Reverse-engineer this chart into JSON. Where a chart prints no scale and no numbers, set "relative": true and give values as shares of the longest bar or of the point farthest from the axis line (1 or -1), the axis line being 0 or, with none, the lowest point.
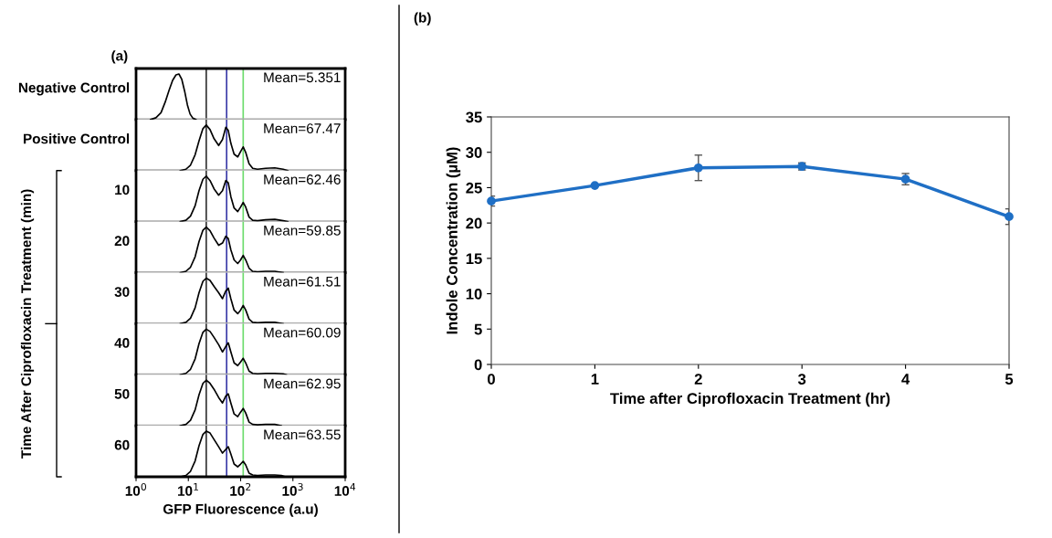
{
  "chart_data": [
    {
      "type": "line",
      "title": "(a)",
      "ylabel": "Negative Control",
      "relative": true,
      "log": "x",
      "xlim": [
        1,
        10000
      ],
      "tick_labels": false,
      "grid": false,
      "annotations": [
        "Mean=5.351"
      ],
      "ref_lines": [
        {
          "axis": "x",
          "value": 22,
          "color": "#333333"
        },
        {
          "axis": "x",
          "value": 54,
          "color": "#3a3aa8"
        },
        {
          "axis": "x",
          "value": 112,
          "color": "#6cdc6c"
        }
      ],
      "series": [
        {
          "color": "#000000",
          "x": [
            1.9,
            2.4,
            3.0,
            3.6,
            4.3,
            5.0,
            5.8,
            6.6,
            7.5,
            8.5,
            9.6,
            10.8,
            12.2,
            14.0
          ],
          "values": [
            0,
            0.04,
            0.15,
            0.38,
            0.65,
            0.86,
            0.98,
            1.0,
            0.88,
            0.62,
            0.32,
            0.12,
            0.03,
            0
          ]
        }
      ]
    },
    {
      "type": "line",
      "ylabel": "Positive Control",
      "relative": true,
      "log": "x",
      "xlim": [
        1,
        10000
      ],
      "tick_labels": false,
      "grid": false,
      "annotations": [
        "Mean=67.47"
      ],
      "ref_lines": [
        {
          "axis": "x",
          "value": 22,
          "color": "#333333"
        },
        {
          "axis": "x",
          "value": 54,
          "color": "#3a3aa8"
        },
        {
          "axis": "x",
          "value": 112,
          "color": "#6cdc6c"
        }
      ],
      "series": [
        {
          "color": "#000000",
          "x": [
            7,
            9,
            11,
            13.5,
            16,
            19,
            22,
            26,
            31,
            38,
            45,
            52,
            58,
            65,
            75,
            88,
            100,
            112,
            125,
            145,
            170,
            210,
            300,
            450,
            650,
            800
          ],
          "values": [
            0,
            0.03,
            0.12,
            0.35,
            0.65,
            0.92,
            1.0,
            0.9,
            0.7,
            0.55,
            0.68,
            0.95,
            0.88,
            0.6,
            0.36,
            0.3,
            0.42,
            0.52,
            0.4,
            0.15,
            0.05,
            0.03,
            0.05,
            0.06,
            0.03,
            0
          ]
        }
      ]
    },
    {
      "type": "line",
      "ylabel": "10",
      "relative": true,
      "log": "x",
      "xlim": [
        1,
        10000
      ],
      "tick_labels": false,
      "grid": false,
      "annotations": [
        "Mean=62.46",
        "Time After Ciprofloxacin Treatment (min)"
      ],
      "ref_lines": [
        {
          "axis": "x",
          "value": 22,
          "color": "#333333"
        },
        {
          "axis": "x",
          "value": 54,
          "color": "#3a3aa8"
        },
        {
          "axis": "x",
          "value": 112,
          "color": "#6cdc6c"
        }
      ],
      "series": [
        {
          "color": "#000000",
          "x": [
            7,
            9,
            11,
            13.5,
            16,
            19,
            22,
            26,
            31,
            38,
            45,
            52,
            58,
            65,
            75,
            88,
            100,
            112,
            125,
            145,
            170,
            210,
            300,
            450,
            650,
            800
          ],
          "values": [
            0,
            0.03,
            0.12,
            0.35,
            0.68,
            0.93,
            1.0,
            0.9,
            0.72,
            0.58,
            0.68,
            0.9,
            0.85,
            0.55,
            0.3,
            0.22,
            0.32,
            0.42,
            0.32,
            0.1,
            0.03,
            0.02,
            0.04,
            0.05,
            0.02,
            0
          ]
        }
      ]
    },
    {
      "type": "line",
      "ylabel": "20",
      "relative": true,
      "log": "x",
      "xlim": [
        1,
        10000
      ],
      "tick_labels": false,
      "grid": false,
      "annotations": [
        "Mean=59.85"
      ],
      "ref_lines": [
        {
          "axis": "x",
          "value": 22,
          "color": "#333333"
        },
        {
          "axis": "x",
          "value": 54,
          "color": "#3a3aa8"
        },
        {
          "axis": "x",
          "value": 112,
          "color": "#6cdc6c"
        }
      ],
      "series": [
        {
          "color": "#000000",
          "x": [
            7,
            9,
            11,
            13.5,
            16,
            19,
            22,
            26,
            31,
            38,
            45,
            52,
            58,
            65,
            75,
            88,
            100,
            112,
            125,
            145,
            170,
            210,
            300,
            450,
            650
          ],
          "values": [
            0,
            0.03,
            0.12,
            0.35,
            0.68,
            0.93,
            1.0,
            0.92,
            0.76,
            0.6,
            0.65,
            0.8,
            0.75,
            0.5,
            0.28,
            0.2,
            0.28,
            0.38,
            0.28,
            0.1,
            0.03,
            0.02,
            0.03,
            0.03,
            0
          ]
        }
      ]
    },
    {
      "type": "line",
      "ylabel": "30",
      "relative": true,
      "log": "x",
      "xlim": [
        1,
        10000
      ],
      "tick_labels": false,
      "grid": false,
      "annotations": [
        "Mean=61.51"
      ],
      "ref_lines": [
        {
          "axis": "x",
          "value": 22,
          "color": "#333333"
        },
        {
          "axis": "x",
          "value": 54,
          "color": "#3a3aa8"
        },
        {
          "axis": "x",
          "value": 112,
          "color": "#6cdc6c"
        }
      ],
      "series": [
        {
          "color": "#000000",
          "x": [
            7,
            9,
            11,
            13.5,
            16,
            19,
            22,
            26,
            31,
            38,
            45,
            52,
            58,
            65,
            75,
            88,
            100,
            112,
            125,
            145,
            170,
            210,
            300,
            450,
            650
          ],
          "values": [
            0,
            0.03,
            0.12,
            0.35,
            0.68,
            0.93,
            1.0,
            0.95,
            0.82,
            0.68,
            0.55,
            0.72,
            0.78,
            0.55,
            0.3,
            0.22,
            0.3,
            0.4,
            0.3,
            0.1,
            0.03,
            0.02,
            0.03,
            0.03,
            0
          ]
        }
      ]
    },
    {
      "type": "line",
      "ylabel": "40",
      "relative": true,
      "log": "x",
      "xlim": [
        1,
        10000
      ],
      "tick_labels": false,
      "grid": false,
      "annotations": [
        "Mean=60.09"
      ],
      "ref_lines": [
        {
          "axis": "x",
          "value": 22,
          "color": "#333333"
        },
        {
          "axis": "x",
          "value": 54,
          "color": "#3a3aa8"
        },
        {
          "axis": "x",
          "value": 112,
          "color": "#6cdc6c"
        }
      ],
      "series": [
        {
          "color": "#000000",
          "x": [
            7,
            9,
            11,
            13.5,
            16,
            19,
            22,
            26,
            31,
            38,
            45,
            52,
            58,
            65,
            75,
            88,
            100,
            112,
            125,
            145,
            170,
            210,
            300,
            450,
            650,
            750
          ],
          "values": [
            0,
            0.03,
            0.12,
            0.35,
            0.68,
            0.93,
            1.0,
            0.95,
            0.82,
            0.66,
            0.5,
            0.62,
            0.7,
            0.5,
            0.26,
            0.2,
            0.28,
            0.36,
            0.26,
            0.08,
            0.03,
            0.02,
            0.03,
            0.03,
            0.02,
            0
          ]
        }
      ]
    },
    {
      "type": "line",
      "ylabel": "50",
      "relative": true,
      "log": "x",
      "xlim": [
        1,
        10000
      ],
      "tick_labels": false,
      "grid": false,
      "annotations": [
        "Mean=62.95"
      ],
      "ref_lines": [
        {
          "axis": "x",
          "value": 22,
          "color": "#333333"
        },
        {
          "axis": "x",
          "value": 54,
          "color": "#3a3aa8"
        },
        {
          "axis": "x",
          "value": 112,
          "color": "#6cdc6c"
        }
      ],
      "series": [
        {
          "color": "#000000",
          "x": [
            7,
            9,
            11,
            13.5,
            16,
            19,
            22,
            26,
            31,
            38,
            45,
            52,
            58,
            65,
            75,
            88,
            100,
            112,
            125,
            145,
            170,
            210,
            300,
            450,
            600
          ],
          "values": [
            0,
            0.03,
            0.12,
            0.35,
            0.68,
            0.93,
            1.0,
            0.93,
            0.8,
            0.62,
            0.5,
            0.65,
            0.7,
            0.5,
            0.26,
            0.2,
            0.3,
            0.38,
            0.28,
            0.08,
            0.03,
            0.02,
            0.03,
            0.03,
            0
          ]
        }
      ]
    },
    {
      "type": "line",
      "ylabel": "60",
      "xlabel": "GFP Fluorescence (a.u)",
      "relative": true,
      "log": "x",
      "xlim": [
        1,
        10000
      ],
      "xticks": [
        {
          "value": 1,
          "label": "10$^{0}$"
        },
        {
          "value": 10,
          "label": "10$^{1}$"
        },
        {
          "value": 100,
          "label": "10$^{2}$"
        },
        {
          "value": 1000,
          "label": "10$^{3}$"
        },
        {
          "value": 10000,
          "label": "10$^{4}$"
        }
      ],
      "tick_labels": "x",
      "grid": false,
      "annotations": [
        "Mean=63.55"
      ],
      "ref_lines": [
        {
          "axis": "x",
          "value": 22,
          "color": "#333333"
        },
        {
          "axis": "x",
          "value": 54,
          "color": "#3a3aa8"
        },
        {
          "axis": "x",
          "value": 112,
          "color": "#6cdc6c"
        }
      ],
      "series": [
        {
          "color": "#000000",
          "x": [
            7,
            9,
            11,
            13.5,
            16,
            19,
            22,
            26,
            31,
            38,
            45,
            52,
            58,
            65,
            75,
            88,
            100,
            112,
            125,
            145,
            170,
            210,
            300,
            450,
            600,
            720
          ],
          "values": [
            0,
            0.03,
            0.12,
            0.35,
            0.68,
            0.93,
            1.0,
            0.96,
            0.82,
            0.66,
            0.52,
            0.6,
            0.66,
            0.5,
            0.28,
            0.22,
            0.28,
            0.34,
            0.26,
            0.08,
            0.04,
            0.03,
            0.04,
            0.04,
            0.03,
            0
          ]
        }
      ]
    },
    {
      "type": "line",
      "title": "(b)",
      "xlabel": "Time after Ciprofloxacin Treatment (hr)",
      "ylabel": "Indole Concentration (µM)",
      "x": [
        0,
        1,
        2,
        3,
        4,
        5
      ],
      "xlim": [
        0,
        5
      ],
      "xticks": [
        0,
        1,
        2,
        3,
        4,
        5
      ],
      "ylim": [
        0,
        35
      ],
      "yticks": [
        0,
        5,
        10,
        15,
        20,
        25,
        30,
        35
      ],
      "grid": false,
      "marker": "circle",
      "line_style": "solid",
      "series": [
        {
          "color": "#1f6fc5",
          "values": [
            23.1,
            25.3,
            27.8,
            28.0,
            26.2,
            20.9
          ],
          "errors": [
            0.7,
            null,
            1.8,
            0.5,
            0.8,
            1.1
          ]
        }
      ]
    }
  ]
}
